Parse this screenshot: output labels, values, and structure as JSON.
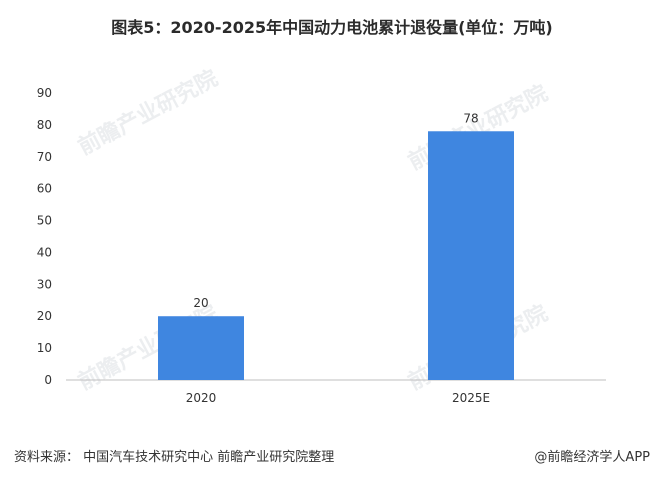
{
  "title": "图表5：2020-2025年中国动力电池累计退役量(单位：万吨)",
  "watermark_text": "前瞻产业研究院",
  "footer": {
    "source": "资料来源： 中国汽车技术研究中心 前瞻产业研究院整理",
    "credit": "@前瞻经济学人APP"
  },
  "colors": {
    "bar": "#3f86e0",
    "axis": "#bfbfbf",
    "text": "#333333"
  },
  "chart_data": {
    "type": "bar",
    "title": "图表5：2020-2025年中国动力电池累计退役量(单位：万吨)",
    "categories": [
      "2020",
      "2025E"
    ],
    "values": [
      20,
      78
    ],
    "data_labels": [
      "20",
      "78"
    ],
    "ylim": [
      0,
      90
    ],
    "yticks": [
      "0",
      "10",
      "20",
      "30",
      "40",
      "50",
      "60",
      "70",
      "80",
      "90"
    ],
    "grid": false,
    "xlabel": "",
    "ylabel": ""
  }
}
